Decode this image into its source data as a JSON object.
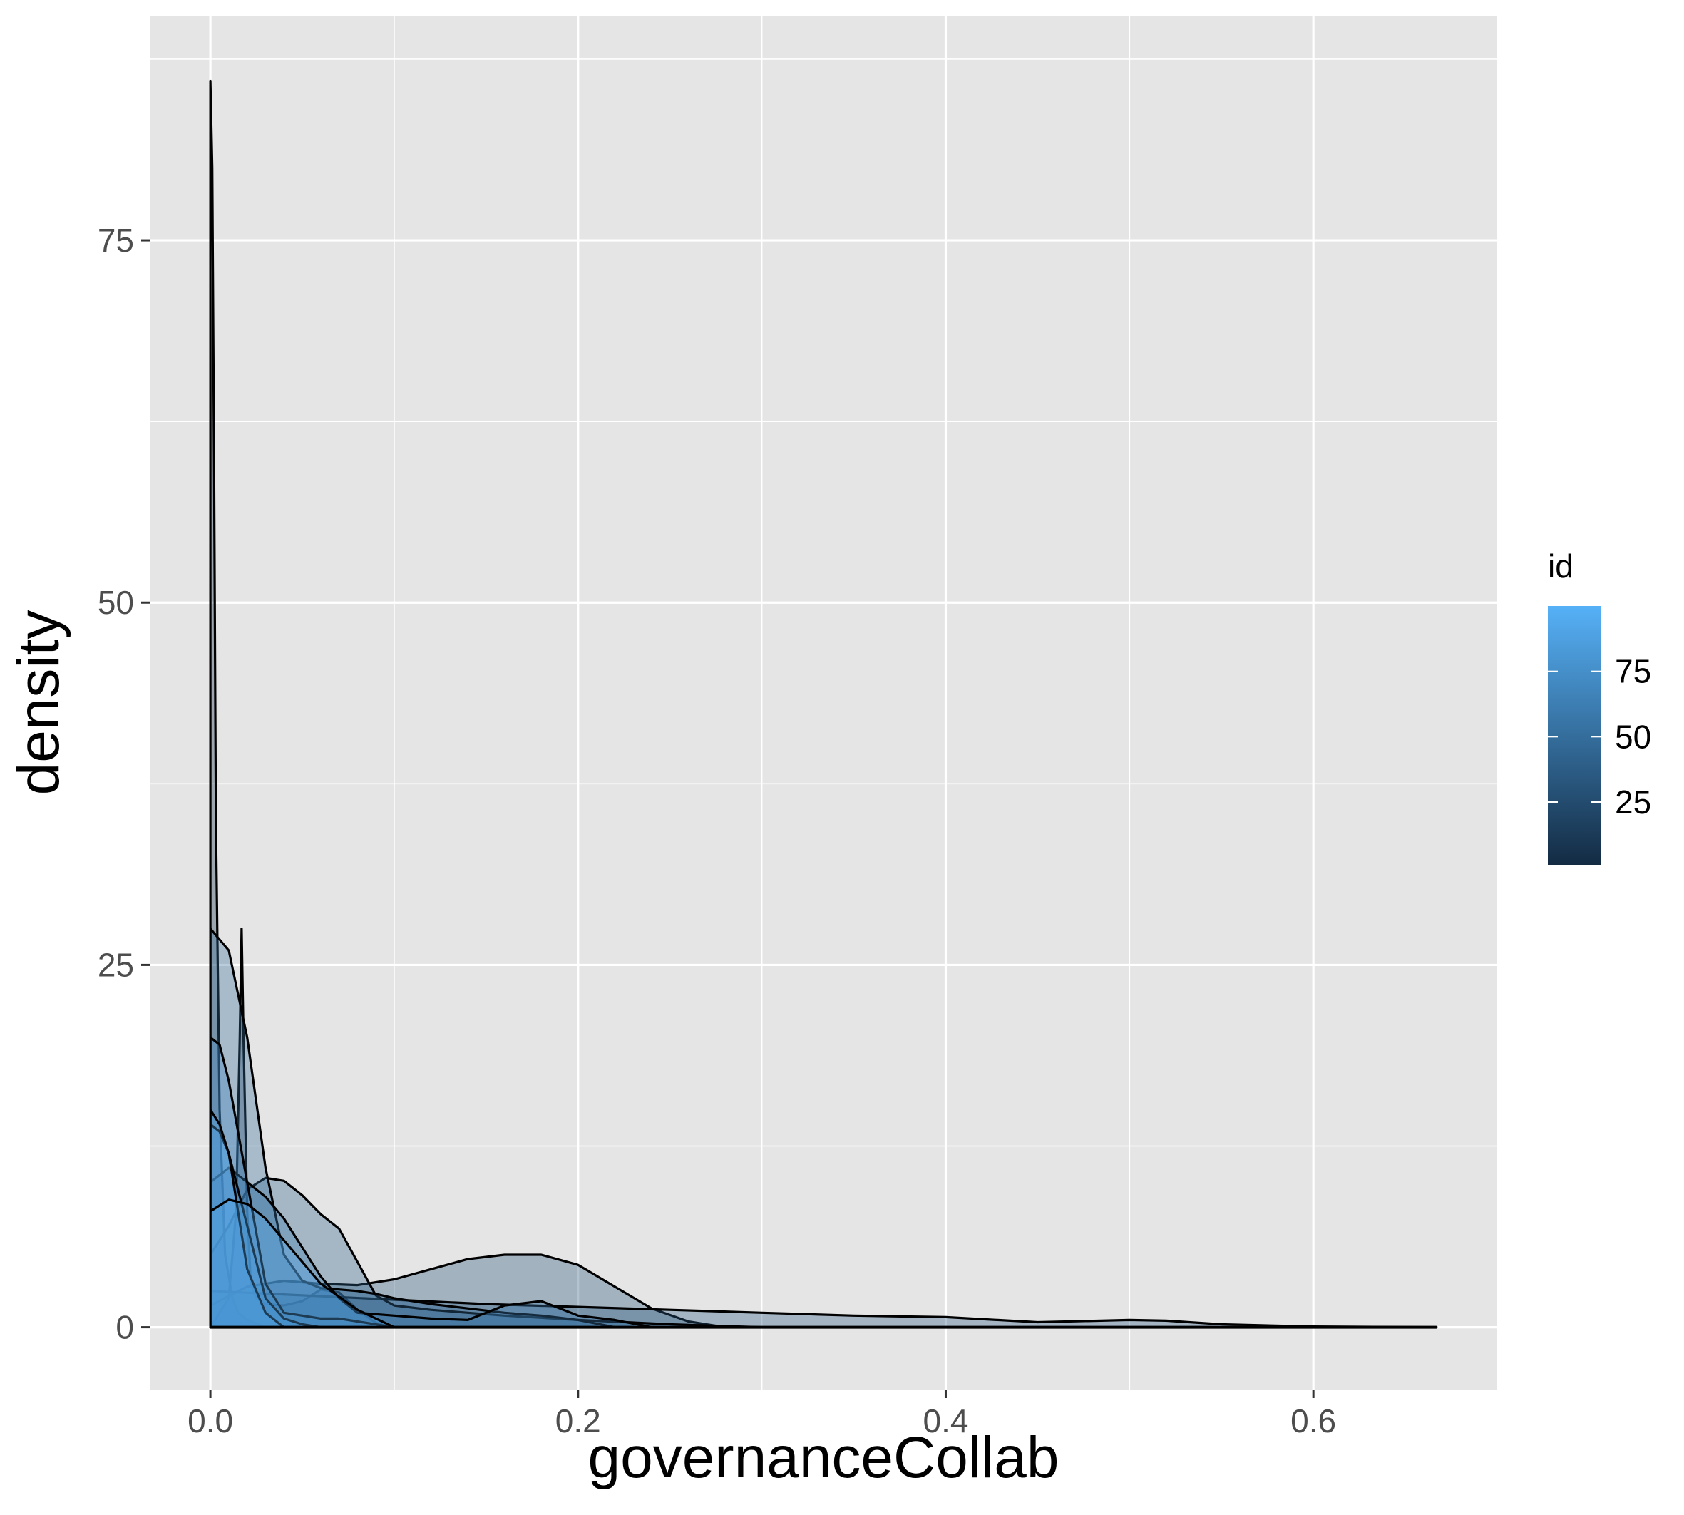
{
  "chart_data": {
    "type": "area",
    "xlabel": "governanceCollab",
    "ylabel": "density",
    "xlim": [
      -0.033,
      0.7
    ],
    "ylim": [
      -4.3,
      90.5
    ],
    "x_ticks": [
      0.0,
      0.2,
      0.4,
      0.6
    ],
    "x_tick_labels": [
      "0.0",
      "0.2",
      "0.4",
      "0.6"
    ],
    "y_ticks": [
      0,
      25,
      50,
      75
    ],
    "y_tick_labels": [
      "0",
      "25",
      "50",
      "75"
    ],
    "grid": true,
    "panel_background": "#e5e5e5",
    "grid_color": "#ffffff",
    "legend": {
      "title": "id",
      "position": "right",
      "type": "colorbar",
      "range": [
        1,
        100
      ],
      "breaks": [
        25,
        50,
        75
      ],
      "break_labels": [
        "25",
        "50",
        "75"
      ],
      "color_low": "#132b43",
      "color_high": "#56b1f7"
    },
    "series": [
      {
        "id": 5,
        "x": [
          0.0,
          0.001,
          0.002,
          0.003,
          0.005,
          0.008,
          0.012,
          0.015,
          0.02,
          0.03
        ],
        "y": [
          86,
          80,
          60,
          35,
          15,
          5,
          2,
          1,
          0.5,
          0
        ]
      },
      {
        "id": 10,
        "x": [
          0.0,
          0.005,
          0.01,
          0.014,
          0.016,
          0.017,
          0.018,
          0.02,
          0.022,
          0.025,
          0.03,
          0.04,
          0.05,
          0.06,
          0.07,
          0.08,
          0.09,
          0.1
        ],
        "y": [
          0,
          1,
          2,
          8,
          20,
          27.5,
          20,
          8,
          3,
          2,
          1.6,
          1.5,
          1.8,
          2.6,
          2.4,
          1.2,
          0.3,
          0
        ]
      },
      {
        "id": 30,
        "x": [
          0.0,
          0.02,
          0.04,
          0.06,
          0.08,
          0.1,
          0.12,
          0.14,
          0.16,
          0.18,
          0.2,
          0.22,
          0.24,
          0.26,
          0.28
        ],
        "y": [
          1.5,
          2.8,
          3.2,
          3.0,
          2.9,
          3.3,
          4.0,
          4.7,
          5.0,
          5.0,
          4.3,
          2.8,
          1.3,
          0.4,
          0
        ]
      },
      {
        "id": 40,
        "x": [
          0.0,
          0.01,
          0.02,
          0.03,
          0.04,
          0.05,
          0.06,
          0.07,
          0.08,
          0.09,
          0.1,
          0.12,
          0.14,
          0.16,
          0.2,
          0.25,
          0.3
        ],
        "y": [
          5,
          7,
          9.5,
          10.3,
          10.1,
          9.1,
          7.8,
          6.8,
          4.5,
          2.2,
          1.5,
          1.2,
          1.0,
          0.8,
          0.5,
          0.2,
          0
        ]
      },
      {
        "id": 35,
        "x": [
          0.0,
          0.05,
          0.1,
          0.15,
          0.2,
          0.25,
          0.3,
          0.35,
          0.4,
          0.45,
          0.5,
          0.52,
          0.55,
          0.6,
          0.667
        ],
        "y": [
          2.5,
          2.2,
          1.9,
          1.6,
          1.4,
          1.2,
          1.0,
          0.8,
          0.7,
          0.35,
          0.5,
          0.45,
          0.2,
          0.05,
          0
        ]
      },
      {
        "id": 50,
        "x": [
          0.0,
          0.01,
          0.02,
          0.03,
          0.04,
          0.05,
          0.06,
          0.07,
          0.08,
          0.09,
          0.1,
          0.12,
          0.14,
          0.16,
          0.18,
          0.2,
          0.22
        ],
        "y": [
          27.5,
          26,
          20,
          11,
          5,
          3.2,
          2.7,
          2.6,
          2.5,
          2.3,
          2.0,
          1.6,
          1.3,
          1.0,
          0.8,
          0.5,
          0
        ]
      },
      {
        "id": 60,
        "x": [
          0.0,
          0.01,
          0.02,
          0.03,
          0.04,
          0.05,
          0.06,
          0.07,
          0.08,
          0.1,
          0.12,
          0.14,
          0.16,
          0.18,
          0.2,
          0.22,
          0.24
        ],
        "y": [
          10,
          11,
          10,
          9,
          7.5,
          5.5,
          3.5,
          2.0,
          1.0,
          0.8,
          0.6,
          0.5,
          1.5,
          1.8,
          0.8,
          0.5,
          0
        ]
      },
      {
        "id": 70,
        "x": [
          0.0,
          0.005,
          0.01,
          0.02,
          0.03,
          0.04,
          0.05,
          0.06,
          0.07,
          0.08,
          0.1
        ],
        "y": [
          20,
          19.5,
          17,
          10,
          3,
          1.0,
          0.8,
          0.6,
          0.6,
          0.4,
          0
        ]
      },
      {
        "id": 80,
        "x": [
          0.0,
          0.005,
          0.01,
          0.02,
          0.03,
          0.04,
          0.05,
          0.06
        ],
        "y": [
          14,
          13.5,
          12,
          7,
          2,
          0.6,
          0.2,
          0
        ]
      },
      {
        "id": 90,
        "x": [
          0.0,
          0.005,
          0.01,
          0.015,
          0.02,
          0.03,
          0.04
        ],
        "y": [
          15,
          14,
          12,
          8,
          4,
          1,
          0
        ]
      },
      {
        "id": 95,
        "x": [
          0.0,
          0.01,
          0.02,
          0.03,
          0.04,
          0.06,
          0.08,
          0.1
        ],
        "y": [
          8,
          8.8,
          8.5,
          7.5,
          6,
          3,
          1.2,
          0
        ]
      }
    ]
  }
}
